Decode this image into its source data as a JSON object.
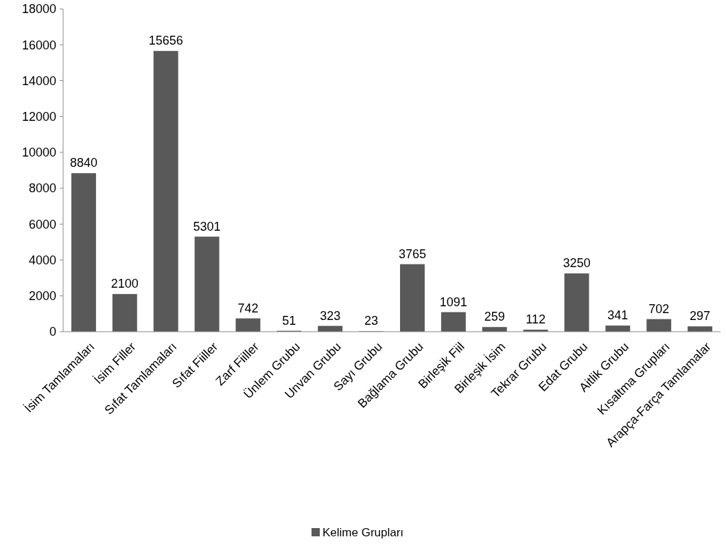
{
  "chart_data": {
    "type": "bar",
    "categories": [
      "İsim Tamlamaları",
      "İsim Filler",
      "Sıfat Tamlamaları",
      "Sıfat Fiiller",
      "Zarf Fiiller",
      "Ünlem Grubu",
      "Unvan Grubu",
      "Sayı Grubu",
      "Bağlama Grubu",
      "Birleşik Fiil",
      "Birleşik İsim",
      "Tekrar Grubu",
      "Edat Grubu",
      "Aitlik Grubu",
      "Kısaltma Grupları",
      "Arapça-Farça Tamlamalar"
    ],
    "series": [
      {
        "name": "Kelime Grupları",
        "color": "#595959",
        "values": [
          8840,
          2100,
          15656,
          5301,
          742,
          51,
          323,
          23,
          3765,
          1091,
          259,
          112,
          3250,
          341,
          702,
          297
        ]
      }
    ],
    "ylim": [
      0,
      18000
    ],
    "yticks": [
      0,
      2000,
      4000,
      6000,
      8000,
      10000,
      12000,
      14000,
      16000,
      18000
    ],
    "data_labels": true,
    "legend": "bottom",
    "grid": false
  }
}
